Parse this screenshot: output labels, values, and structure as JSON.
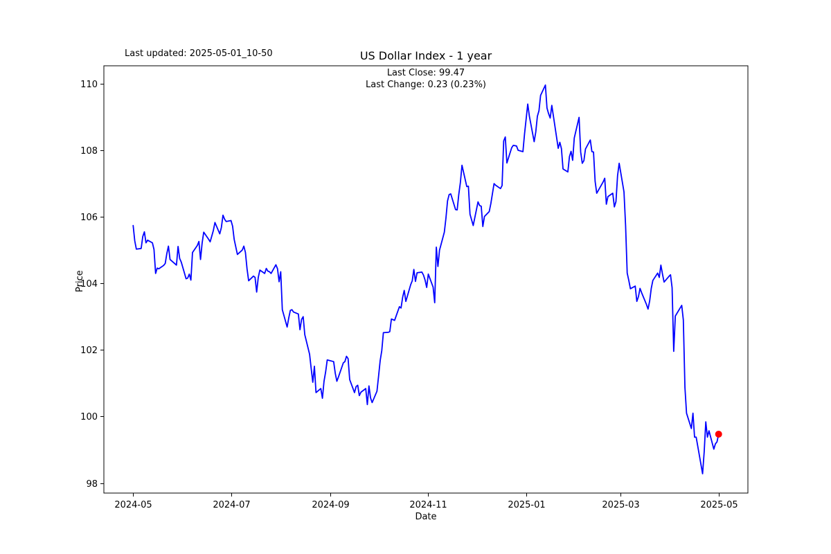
{
  "figure": {
    "background": "#ffffff",
    "last_updated": "Last updated: 2025-05-01_10-50"
  },
  "chart_data": {
    "type": "line",
    "title": "US Dollar Index - 1 year",
    "annotation_line1": "Last Close: 99.47",
    "annotation_line2": "Last Change: 0.23 (0.23%)",
    "last_close": 99.47,
    "last_change": 0.23,
    "last_change_pct": "0.23%",
    "xlabel": "Date",
    "ylabel": "Price",
    "grid": false,
    "legend": "none",
    "line_color": "#0000ff",
    "marker_color": "#ff0000",
    "axis_color": "#000000",
    "x_epoch": "2024-05-01",
    "xlim_days": [
      -18.25,
      383.25
    ],
    "ylim": [
      97.7,
      110.54
    ],
    "y_ticks": [
      98,
      100,
      102,
      104,
      106,
      108,
      110
    ],
    "x_ticks": [
      {
        "label": "2024-05",
        "date": "2024-05-01"
      },
      {
        "label": "2024-07",
        "date": "2024-07-01"
      },
      {
        "label": "2024-09",
        "date": "2024-09-01"
      },
      {
        "label": "2024-11",
        "date": "2024-11-01"
      },
      {
        "label": "2025-01",
        "date": "2025-01-01"
      },
      {
        "label": "2025-03",
        "date": "2025-03-01"
      },
      {
        "label": "2025-05",
        "date": "2025-05-01"
      }
    ],
    "points": [
      [
        "2024-05-01",
        105.74
      ],
      [
        "2024-05-02",
        105.28
      ],
      [
        "2024-05-03",
        105.03
      ],
      [
        "2024-05-06",
        105.05
      ],
      [
        "2024-05-07",
        105.41
      ],
      [
        "2024-05-08",
        105.55
      ],
      [
        "2024-05-09",
        105.22
      ],
      [
        "2024-05-10",
        105.3
      ],
      [
        "2024-05-13",
        105.22
      ],
      [
        "2024-05-14",
        105.02
      ],
      [
        "2024-05-15",
        104.3
      ],
      [
        "2024-05-16",
        104.46
      ],
      [
        "2024-05-17",
        104.44
      ],
      [
        "2024-05-20",
        104.54
      ],
      [
        "2024-05-21",
        104.6
      ],
      [
        "2024-05-22",
        104.9
      ],
      [
        "2024-05-23",
        105.12
      ],
      [
        "2024-05-24",
        104.72
      ],
      [
        "2024-05-28",
        104.55
      ],
      [
        "2024-05-29",
        105.11
      ],
      [
        "2024-05-30",
        104.75
      ],
      [
        "2024-05-31",
        104.64
      ],
      [
        "2024-06-03",
        104.14
      ],
      [
        "2024-06-04",
        104.16
      ],
      [
        "2024-06-05",
        104.28
      ],
      [
        "2024-06-06",
        104.1
      ],
      [
        "2024-06-07",
        104.93
      ],
      [
        "2024-06-10",
        105.14
      ],
      [
        "2024-06-11",
        105.26
      ],
      [
        "2024-06-12",
        104.72
      ],
      [
        "2024-06-13",
        105.21
      ],
      [
        "2024-06-14",
        105.54
      ],
      [
        "2024-06-17",
        105.33
      ],
      [
        "2024-06-18",
        105.25
      ],
      [
        "2024-06-20",
        105.59
      ],
      [
        "2024-06-21",
        105.83
      ],
      [
        "2024-06-24",
        105.49
      ],
      [
        "2024-06-25",
        105.68
      ],
      [
        "2024-06-26",
        106.05
      ],
      [
        "2024-06-27",
        105.93
      ],
      [
        "2024-06-28",
        105.86
      ],
      [
        "2024-07-01",
        105.89
      ],
      [
        "2024-07-02",
        105.72
      ],
      [
        "2024-07-03",
        105.32
      ],
      [
        "2024-07-05",
        104.87
      ],
      [
        "2024-07-08",
        105.0
      ],
      [
        "2024-07-09",
        105.12
      ],
      [
        "2024-07-10",
        104.93
      ],
      [
        "2024-07-11",
        104.44
      ],
      [
        "2024-07-12",
        104.08
      ],
      [
        "2024-07-15",
        104.22
      ],
      [
        "2024-07-16",
        104.18
      ],
      [
        "2024-07-17",
        103.74
      ],
      [
        "2024-07-18",
        104.18
      ],
      [
        "2024-07-19",
        104.4
      ],
      [
        "2024-07-22",
        104.3
      ],
      [
        "2024-07-23",
        104.45
      ],
      [
        "2024-07-24",
        104.37
      ],
      [
        "2024-07-25",
        104.35
      ],
      [
        "2024-07-26",
        104.3
      ],
      [
        "2024-07-29",
        104.56
      ],
      [
        "2024-07-30",
        104.44
      ],
      [
        "2024-07-31",
        104.05
      ],
      [
        "2024-08-01",
        104.35
      ],
      [
        "2024-08-02",
        103.21
      ],
      [
        "2024-08-05",
        102.69
      ],
      [
        "2024-08-06",
        102.96
      ],
      [
        "2024-08-07",
        103.19
      ],
      [
        "2024-08-08",
        103.21
      ],
      [
        "2024-08-09",
        103.14
      ],
      [
        "2024-08-12",
        103.08
      ],
      [
        "2024-08-13",
        102.61
      ],
      [
        "2024-08-14",
        102.92
      ],
      [
        "2024-08-15",
        103.0
      ],
      [
        "2024-08-16",
        102.46
      ],
      [
        "2024-08-19",
        101.87
      ],
      [
        "2024-08-20",
        101.44
      ],
      [
        "2024-08-21",
        101.03
      ],
      [
        "2024-08-22",
        101.51
      ],
      [
        "2024-08-23",
        100.72
      ],
      [
        "2024-08-26",
        100.84
      ],
      [
        "2024-08-27",
        100.55
      ],
      [
        "2024-08-28",
        101.06
      ],
      [
        "2024-08-29",
        101.34
      ],
      [
        "2024-08-30",
        101.7
      ],
      [
        "2024-09-03",
        101.65
      ],
      [
        "2024-09-04",
        101.3
      ],
      [
        "2024-09-05",
        101.06
      ],
      [
        "2024-09-06",
        101.19
      ],
      [
        "2024-09-09",
        101.61
      ],
      [
        "2024-09-10",
        101.65
      ],
      [
        "2024-09-11",
        101.81
      ],
      [
        "2024-09-12",
        101.74
      ],
      [
        "2024-09-13",
        101.11
      ],
      [
        "2024-09-16",
        100.72
      ],
      [
        "2024-09-17",
        100.9
      ],
      [
        "2024-09-18",
        100.94
      ],
      [
        "2024-09-19",
        100.63
      ],
      [
        "2024-09-20",
        100.73
      ],
      [
        "2024-09-23",
        100.84
      ],
      [
        "2024-09-24",
        100.36
      ],
      [
        "2024-09-25",
        100.92
      ],
      [
        "2024-09-26",
        100.56
      ],
      [
        "2024-09-27",
        100.42
      ],
      [
        "2024-09-30",
        100.76
      ],
      [
        "2024-10-01",
        101.21
      ],
      [
        "2024-10-02",
        101.68
      ],
      [
        "2024-10-03",
        101.98
      ],
      [
        "2024-10-04",
        102.52
      ],
      [
        "2024-10-07",
        102.53
      ],
      [
        "2024-10-08",
        102.55
      ],
      [
        "2024-10-09",
        102.93
      ],
      [
        "2024-10-10",
        102.91
      ],
      [
        "2024-10-11",
        102.89
      ],
      [
        "2024-10-14",
        103.3
      ],
      [
        "2024-10-15",
        103.26
      ],
      [
        "2024-10-16",
        103.58
      ],
      [
        "2024-10-17",
        103.79
      ],
      [
        "2024-10-18",
        103.46
      ],
      [
        "2024-10-21",
        103.96
      ],
      [
        "2024-10-22",
        104.08
      ],
      [
        "2024-10-23",
        104.42
      ],
      [
        "2024-10-24",
        104.06
      ],
      [
        "2024-10-25",
        104.32
      ],
      [
        "2024-10-28",
        104.34
      ],
      [
        "2024-10-29",
        104.25
      ],
      [
        "2024-10-30",
        104.1
      ],
      [
        "2024-10-31",
        103.88
      ],
      [
        "2024-11-01",
        104.28
      ],
      [
        "2024-11-04",
        103.89
      ],
      [
        "2024-11-05",
        103.42
      ],
      [
        "2024-11-06",
        105.09
      ],
      [
        "2024-11-07",
        104.51
      ],
      [
        "2024-11-08",
        105.0
      ],
      [
        "2024-11-11",
        105.54
      ],
      [
        "2024-11-12",
        105.96
      ],
      [
        "2024-11-13",
        106.48
      ],
      [
        "2024-11-14",
        106.67
      ],
      [
        "2024-11-15",
        106.69
      ],
      [
        "2024-11-18",
        106.22
      ],
      [
        "2024-11-19",
        106.21
      ],
      [
        "2024-11-20",
        106.67
      ],
      [
        "2024-11-21",
        107.03
      ],
      [
        "2024-11-22",
        107.55
      ],
      [
        "2024-11-25",
        106.91
      ],
      [
        "2024-11-26",
        106.92
      ],
      [
        "2024-11-27",
        106.08
      ],
      [
        "2024-11-29",
        105.74
      ],
      [
        "2024-12-02",
        106.45
      ],
      [
        "2024-12-03",
        106.34
      ],
      [
        "2024-12-04",
        106.32
      ],
      [
        "2024-12-05",
        105.71
      ],
      [
        "2024-12-06",
        106.01
      ],
      [
        "2024-12-09",
        106.16
      ],
      [
        "2024-12-10",
        106.4
      ],
      [
        "2024-12-11",
        106.7
      ],
      [
        "2024-12-12",
        107.0
      ],
      [
        "2024-12-13",
        106.95
      ],
      [
        "2024-12-16",
        106.85
      ],
      [
        "2024-12-17",
        106.94
      ],
      [
        "2024-12-18",
        108.28
      ],
      [
        "2024-12-19",
        108.4
      ],
      [
        "2024-12-20",
        107.62
      ],
      [
        "2024-12-23",
        108.08
      ],
      [
        "2024-12-24",
        108.15
      ],
      [
        "2024-12-26",
        108.13
      ],
      [
        "2024-12-27",
        108.0
      ],
      [
        "2024-12-30",
        107.96
      ],
      [
        "2024-12-31",
        108.49
      ],
      [
        "2025-01-02",
        109.39
      ],
      [
        "2025-01-03",
        109.03
      ],
      [
        "2025-01-06",
        108.26
      ],
      [
        "2025-01-07",
        108.55
      ],
      [
        "2025-01-08",
        109.02
      ],
      [
        "2025-01-09",
        109.19
      ],
      [
        "2025-01-10",
        109.65
      ],
      [
        "2025-01-13",
        109.96
      ],
      [
        "2025-01-14",
        109.27
      ],
      [
        "2025-01-15",
        109.1
      ],
      [
        "2025-01-16",
        108.97
      ],
      [
        "2025-01-17",
        109.35
      ],
      [
        "2025-01-21",
        108.06
      ],
      [
        "2025-01-22",
        108.24
      ],
      [
        "2025-01-23",
        108.05
      ],
      [
        "2025-01-24",
        107.44
      ],
      [
        "2025-01-27",
        107.35
      ],
      [
        "2025-01-28",
        107.81
      ],
      [
        "2025-01-29",
        107.97
      ],
      [
        "2025-01-30",
        107.7
      ],
      [
        "2025-01-31",
        108.37
      ],
      [
        "2025-02-03",
        108.99
      ],
      [
        "2025-02-04",
        107.95
      ],
      [
        "2025-02-05",
        107.61
      ],
      [
        "2025-02-06",
        107.69
      ],
      [
        "2025-02-07",
        108.04
      ],
      [
        "2025-02-10",
        108.31
      ],
      [
        "2025-02-11",
        107.96
      ],
      [
        "2025-02-12",
        107.95
      ],
      [
        "2025-02-13",
        107.07
      ],
      [
        "2025-02-14",
        106.71
      ],
      [
        "2025-02-18",
        107.05
      ],
      [
        "2025-02-19",
        107.16
      ],
      [
        "2025-02-20",
        106.38
      ],
      [
        "2025-02-21",
        106.61
      ],
      [
        "2025-02-24",
        106.71
      ],
      [
        "2025-02-25",
        106.3
      ],
      [
        "2025-02-26",
        106.46
      ],
      [
        "2025-02-27",
        107.24
      ],
      [
        "2025-02-28",
        107.61
      ],
      [
        "2025-03-03",
        106.75
      ],
      [
        "2025-03-04",
        105.74
      ],
      [
        "2025-03-05",
        104.31
      ],
      [
        "2025-03-06",
        104.09
      ],
      [
        "2025-03-07",
        103.84
      ],
      [
        "2025-03-10",
        103.92
      ],
      [
        "2025-03-11",
        103.46
      ],
      [
        "2025-03-12",
        103.6
      ],
      [
        "2025-03-13",
        103.85
      ],
      [
        "2025-03-14",
        103.72
      ],
      [
        "2025-03-17",
        103.37
      ],
      [
        "2025-03-18",
        103.23
      ],
      [
        "2025-03-19",
        103.47
      ],
      [
        "2025-03-20",
        103.85
      ],
      [
        "2025-03-21",
        104.09
      ],
      [
        "2025-03-24",
        104.31
      ],
      [
        "2025-03-25",
        104.18
      ],
      [
        "2025-03-26",
        104.55
      ],
      [
        "2025-03-27",
        104.28
      ],
      [
        "2025-03-28",
        104.04
      ],
      [
        "2025-03-31",
        104.21
      ],
      [
        "2025-04-01",
        104.26
      ],
      [
        "2025-04-02",
        103.87
      ],
      [
        "2025-04-03",
        101.96
      ],
      [
        "2025-04-04",
        103.02
      ],
      [
        "2025-04-07",
        103.26
      ],
      [
        "2025-04-08",
        103.34
      ],
      [
        "2025-04-09",
        102.9
      ],
      [
        "2025-04-10",
        100.87
      ],
      [
        "2025-04-11",
        100.1
      ],
      [
        "2025-04-14",
        99.64
      ],
      [
        "2025-04-15",
        100.1
      ],
      [
        "2025-04-16",
        99.38
      ],
      [
        "2025-04-17",
        99.38
      ],
      [
        "2025-04-21",
        98.28
      ],
      [
        "2025-04-22",
        98.94
      ],
      [
        "2025-04-23",
        99.84
      ],
      [
        "2025-04-24",
        99.38
      ],
      [
        "2025-04-25",
        99.57
      ],
      [
        "2025-04-28",
        99.02
      ],
      [
        "2025-04-29",
        99.18
      ],
      [
        "2025-04-30",
        99.24
      ],
      [
        "2025-05-01",
        99.47
      ]
    ]
  }
}
